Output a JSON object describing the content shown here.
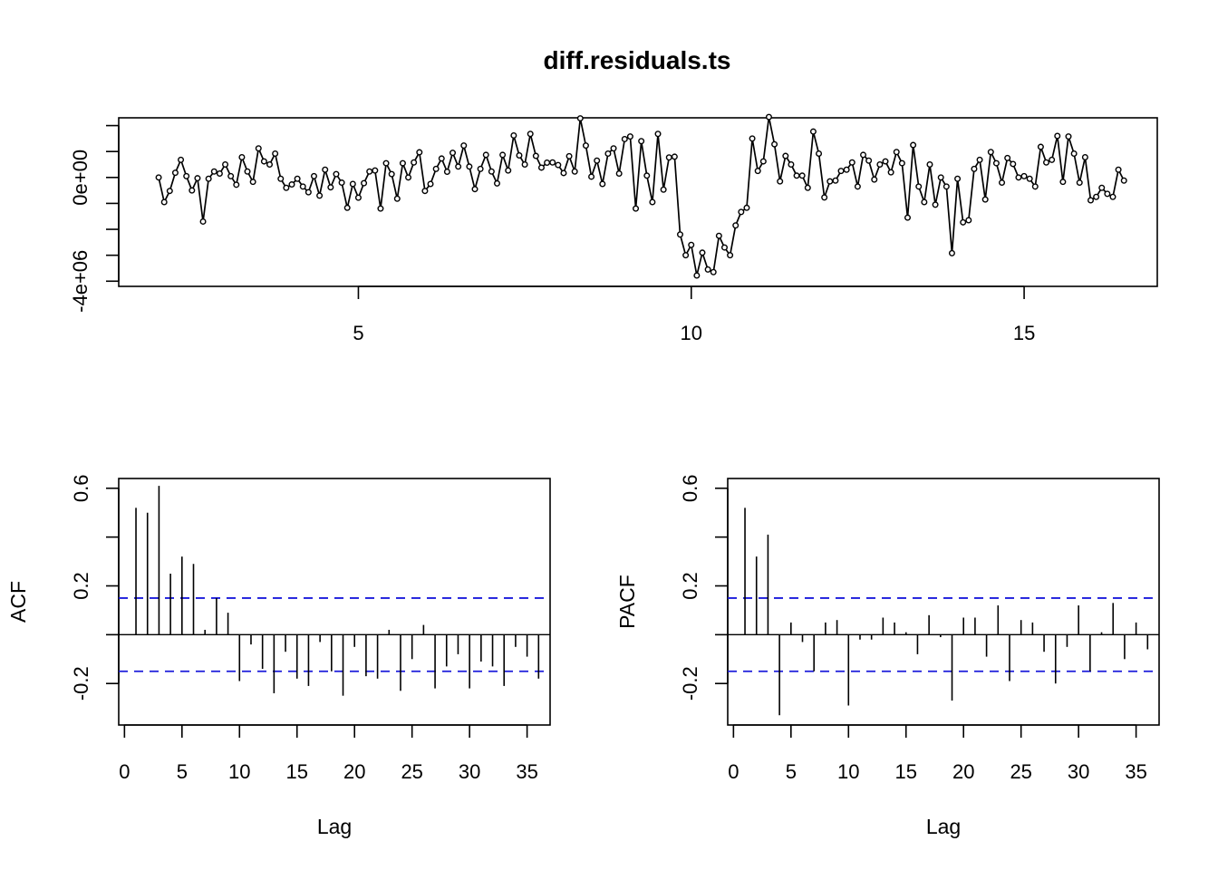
{
  "chart_data": [
    {
      "type": "line",
      "title": "diff.residuals.ts",
      "xlabel": "",
      "ylabel": "",
      "xlim": [
        1.4,
        17.0
      ],
      "ylim": [
        -4200000,
        2300000
      ],
      "x_ticks": [
        5,
        10,
        15
      ],
      "x_tick_labels": [
        "5",
        "10",
        "15"
      ],
      "y_ticks": [
        -4000000,
        -3000000,
        -2000000,
        -1000000,
        0,
        1000000,
        2000000
      ],
      "y_tick_labels": [
        {
          "value": -4000000,
          "label": "-4e+06"
        },
        {
          "value": 0,
          "label": "0e+00"
        }
      ],
      "x_start": 2.0,
      "x_step": 0.08333,
      "points_marked": true,
      "series": [
        {
          "values": [
            0.0,
            -0.95,
            -0.52,
            0.18,
            0.68,
            0.05,
            -0.5,
            -0.03,
            -1.7,
            -0.05,
            0.23,
            0.15,
            0.5,
            0.05,
            -0.28,
            0.78,
            0.23,
            -0.17,
            1.12,
            0.62,
            0.5,
            0.92,
            -0.05,
            -0.4,
            -0.27,
            -0.05,
            -0.35,
            -0.57,
            0.05,
            -0.7,
            0.3,
            -0.38,
            0.13,
            -0.2,
            -1.17,
            -0.25,
            -0.78,
            -0.22,
            0.23,
            0.27,
            -1.2,
            0.55,
            0.13,
            -0.82,
            0.55,
            0.0,
            0.58,
            0.97,
            -0.52,
            -0.25,
            0.33,
            0.73,
            0.22,
            0.95,
            0.42,
            1.23,
            0.42,
            -0.45,
            0.33,
            0.87,
            0.23,
            -0.23,
            0.87,
            0.27,
            1.62,
            0.85,
            0.5,
            1.68,
            0.83,
            0.38,
            0.57,
            0.58,
            0.48,
            0.17,
            0.82,
            0.23,
            2.28,
            1.23,
            0.03,
            0.65,
            -0.25,
            0.92,
            1.12,
            0.15,
            1.48,
            1.58,
            -1.2,
            1.4,
            0.07,
            -0.95,
            1.68,
            -0.47,
            0.77,
            0.8,
            -2.2,
            -3.0,
            -2.6,
            -3.78,
            -2.9,
            -3.55,
            -3.65,
            -2.25,
            -2.7,
            -3.0,
            -1.85,
            -1.33,
            -1.17,
            1.5,
            0.25,
            0.62,
            2.33,
            1.28,
            -0.15,
            0.83,
            0.5,
            0.07,
            0.07,
            -0.4,
            1.77,
            0.92,
            -0.77,
            -0.15,
            -0.12,
            0.25,
            0.3,
            0.58,
            -0.35,
            0.87,
            0.65,
            -0.08,
            0.5,
            0.62,
            0.2,
            0.98,
            0.55,
            -1.55,
            1.25,
            -0.35,
            -0.95,
            0.5,
            -1.05,
            0.0,
            -0.35,
            -2.92,
            -0.05,
            -1.73,
            -1.65,
            0.33,
            0.68,
            -0.85,
            0.98,
            0.55,
            -0.2,
            0.75,
            0.52,
            0.0,
            0.05,
            -0.05,
            -0.35,
            1.18,
            0.58,
            0.68,
            1.6,
            -0.17,
            1.58,
            0.92,
            -0.2,
            0.78,
            -0.88,
            -0.75,
            -0.4,
            -0.63,
            -0.75,
            0.3,
            -0.12
          ]
        }
      ]
    },
    {
      "type": "bar",
      "xlabel": "Lag",
      "ylabel": "ACF",
      "xlim": [
        -0.5,
        37.0
      ],
      "ylim": [
        -0.37,
        0.64
      ],
      "x_ticks": [
        0,
        5,
        10,
        15,
        20,
        25,
        30,
        35
      ],
      "x_tick_labels": [
        "0",
        "5",
        "10",
        "15",
        "20",
        "25",
        "30",
        "35"
      ],
      "y_ticks": [
        -0.2,
        0.0,
        0.2,
        0.4,
        0.6
      ],
      "y_tick_labels": [
        {
          "value": -0.2,
          "label": "-0.2"
        },
        {
          "value": 0.2,
          "label": "0.2"
        },
        {
          "value": 0.6,
          "label": "0.6"
        }
      ],
      "conf_level": 0.15,
      "lags": [
        1,
        2,
        3,
        4,
        5,
        6,
        7,
        8,
        9,
        10,
        11,
        12,
        13,
        14,
        15,
        16,
        17,
        18,
        19,
        20,
        21,
        22,
        23,
        24,
        25,
        26,
        27,
        28,
        29,
        30,
        31,
        32,
        33,
        34,
        35,
        36
      ],
      "values": [
        0.52,
        0.5,
        0.61,
        0.25,
        0.32,
        0.29,
        0.02,
        0.15,
        0.09,
        -0.19,
        -0.04,
        -0.14,
        -0.24,
        -0.07,
        -0.18,
        -0.21,
        -0.03,
        -0.15,
        -0.25,
        -0.05,
        -0.17,
        -0.18,
        0.02,
        -0.23,
        -0.1,
        0.04,
        -0.22,
        -0.13,
        -0.08,
        -0.22,
        -0.11,
        -0.13,
        -0.21,
        -0.05,
        -0.09,
        -0.18
      ]
    },
    {
      "type": "bar",
      "xlabel": "Lag",
      "ylabel": "PACF",
      "xlim": [
        -0.5,
        37.0
      ],
      "ylim": [
        -0.37,
        0.64
      ],
      "x_ticks": [
        0,
        5,
        10,
        15,
        20,
        25,
        30,
        35
      ],
      "x_tick_labels": [
        "0",
        "5",
        "10",
        "15",
        "20",
        "25",
        "30",
        "35"
      ],
      "y_ticks": [
        -0.2,
        0.0,
        0.2,
        0.4,
        0.6
      ],
      "y_tick_labels": [
        {
          "value": -0.2,
          "label": "-0.2"
        },
        {
          "value": 0.2,
          "label": "0.2"
        },
        {
          "value": 0.6,
          "label": "0.6"
        }
      ],
      "conf_level": 0.15,
      "lags": [
        1,
        2,
        3,
        4,
        5,
        6,
        7,
        8,
        9,
        10,
        11,
        12,
        13,
        14,
        15,
        16,
        17,
        18,
        19,
        20,
        21,
        22,
        23,
        24,
        25,
        26,
        27,
        28,
        29,
        30,
        31,
        32,
        33,
        34,
        35,
        36
      ],
      "values": [
        0.52,
        0.32,
        0.41,
        -0.33,
        0.05,
        -0.03,
        -0.15,
        0.05,
        0.06,
        -0.29,
        -0.02,
        -0.02,
        0.07,
        0.05,
        0.01,
        -0.08,
        0.08,
        -0.01,
        -0.27,
        0.07,
        0.07,
        -0.09,
        0.12,
        -0.19,
        0.06,
        0.05,
        -0.07,
        -0.2,
        -0.05,
        0.12,
        -0.15,
        0.01,
        0.13,
        -0.1,
        0.05,
        -0.06
      ]
    }
  ]
}
